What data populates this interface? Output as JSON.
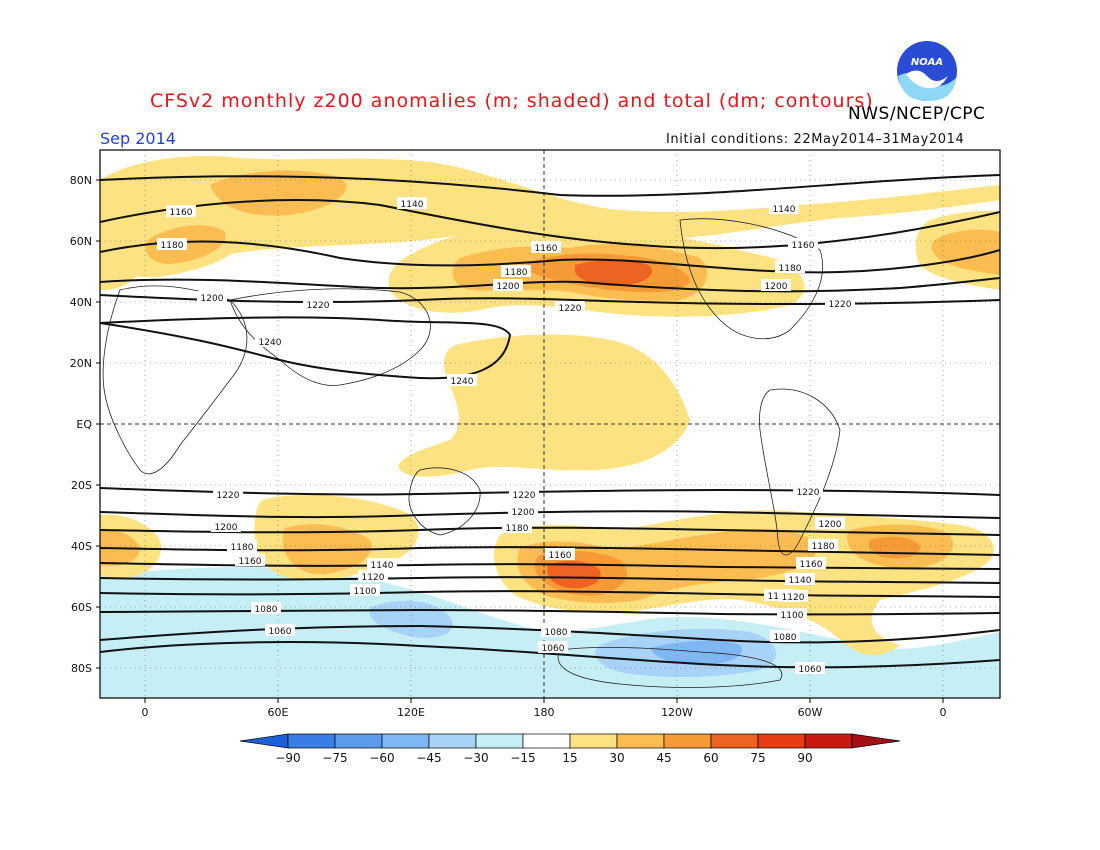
{
  "title": "CFSv2 monthly z200 anomalies (m; shaded) and total (dm; contours)",
  "agency": "NWS/NCEP/CPC",
  "logo_text": "NOAA",
  "month_label": "Sep 2014",
  "initial_conditions": "Initial conditions: 22May2014–31May2014",
  "lat_labels": [
    "80N",
    "60N",
    "40N",
    "20N",
    "EQ",
    "20S",
    "40S",
    "60S",
    "80S"
  ],
  "lon_labels": [
    "0",
    "60E",
    "120E",
    "180",
    "120W",
    "60W",
    "0"
  ],
  "colorbar": {
    "labels": [
      "−90",
      "−75",
      "−60",
      "−45",
      "−30",
      "−15",
      "15",
      "30",
      "45",
      "60",
      "75",
      "90"
    ],
    "colors": [
      "#1c5fd8",
      "#3a7de6",
      "#5a9bee",
      "#7fb6f4",
      "#a6d3f7",
      "#c6eef5",
      "#ffffff",
      "#fde281",
      "#fbbd52",
      "#f69a37",
      "#ef6322",
      "#e83c14",
      "#c91a12",
      "#a31016"
    ]
  },
  "contour_labels": [
    "1140",
    "1160",
    "1180",
    "1200",
    "1220",
    "1240",
    "1240",
    "1160",
    "1180",
    "1200",
    "1220",
    "1140",
    "1160",
    "1180",
    "1200",
    "1220",
    "1220",
    "1200",
    "1180",
    "1160",
    "1140",
    "1120",
    "1100",
    "1080",
    "1060",
    "1220",
    "1200",
    "1180",
    "1160",
    "1120",
    "1080",
    "1060",
    "1220",
    "1200",
    "1180",
    "1160",
    "1140",
    "1120",
    "1100",
    "1080",
    "1060"
  ]
}
